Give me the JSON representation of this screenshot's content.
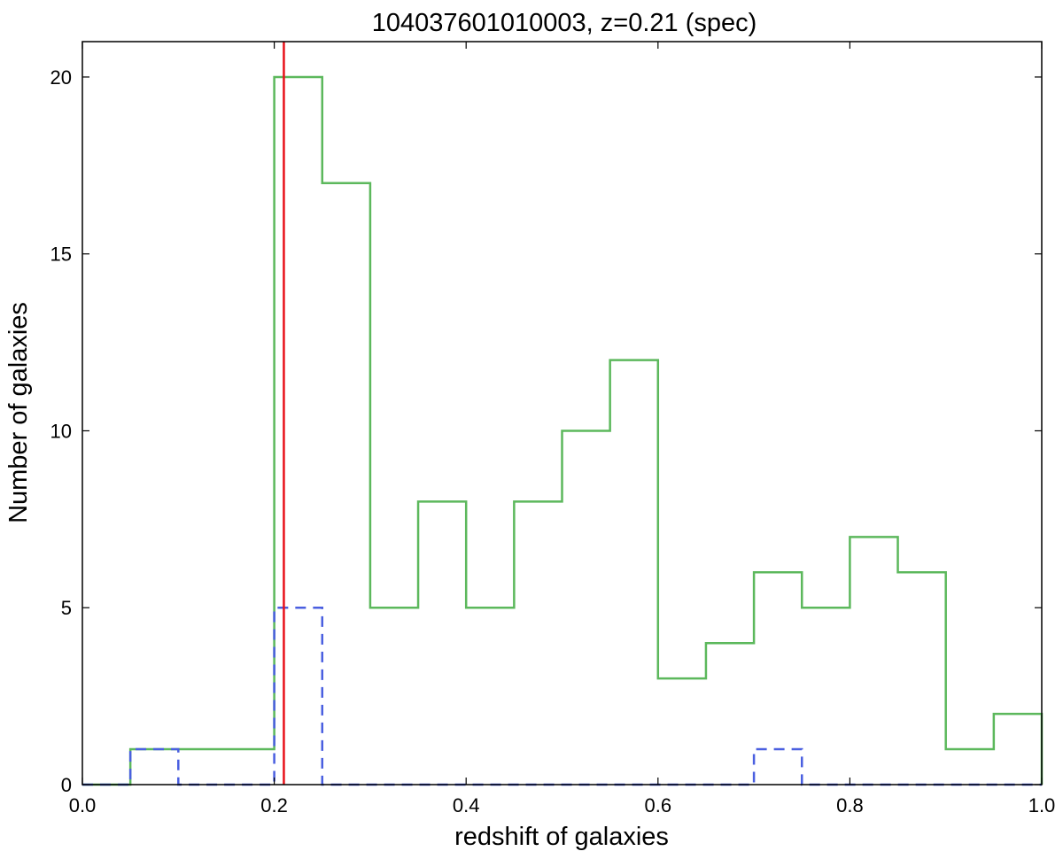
{
  "chart_data": {
    "type": "histogram",
    "title": "104037601010003, z=0.21 (spec)",
    "xlabel": "redshift of galaxies",
    "ylabel": "Number of galaxies",
    "xlim": [
      0.0,
      1.0
    ],
    "ylim": [
      0,
      21
    ],
    "xticks": [
      "0.0",
      "0.2",
      "0.4",
      "0.6",
      "0.8",
      "1.0"
    ],
    "yticks": [
      "0",
      "5",
      "10",
      "15",
      "20"
    ],
    "bin_edges": [
      0.0,
      0.05,
      0.1,
      0.15,
      0.2,
      0.25,
      0.3,
      0.35,
      0.4,
      0.45,
      0.5,
      0.55,
      0.6,
      0.65,
      0.7,
      0.75,
      0.8,
      0.85,
      0.9,
      0.95,
      1.0
    ],
    "series": [
      {
        "style": "solid",
        "color": "#5cb85c",
        "values": [
          0,
          1,
          1,
          1,
          20,
          17,
          5,
          8,
          5,
          8,
          10,
          12,
          3,
          4,
          6,
          5,
          7,
          6,
          1,
          2
        ]
      },
      {
        "style": "dashed",
        "color": "#4a5fe0",
        "values": [
          0,
          1,
          0,
          0,
          5,
          0,
          0,
          0,
          0,
          0,
          0,
          0,
          0,
          0,
          1,
          0,
          0,
          0,
          0,
          0
        ]
      }
    ],
    "vlines": [
      {
        "x": 0.21,
        "color": "#e8111a"
      }
    ],
    "grid": false,
    "legend": "none"
  }
}
